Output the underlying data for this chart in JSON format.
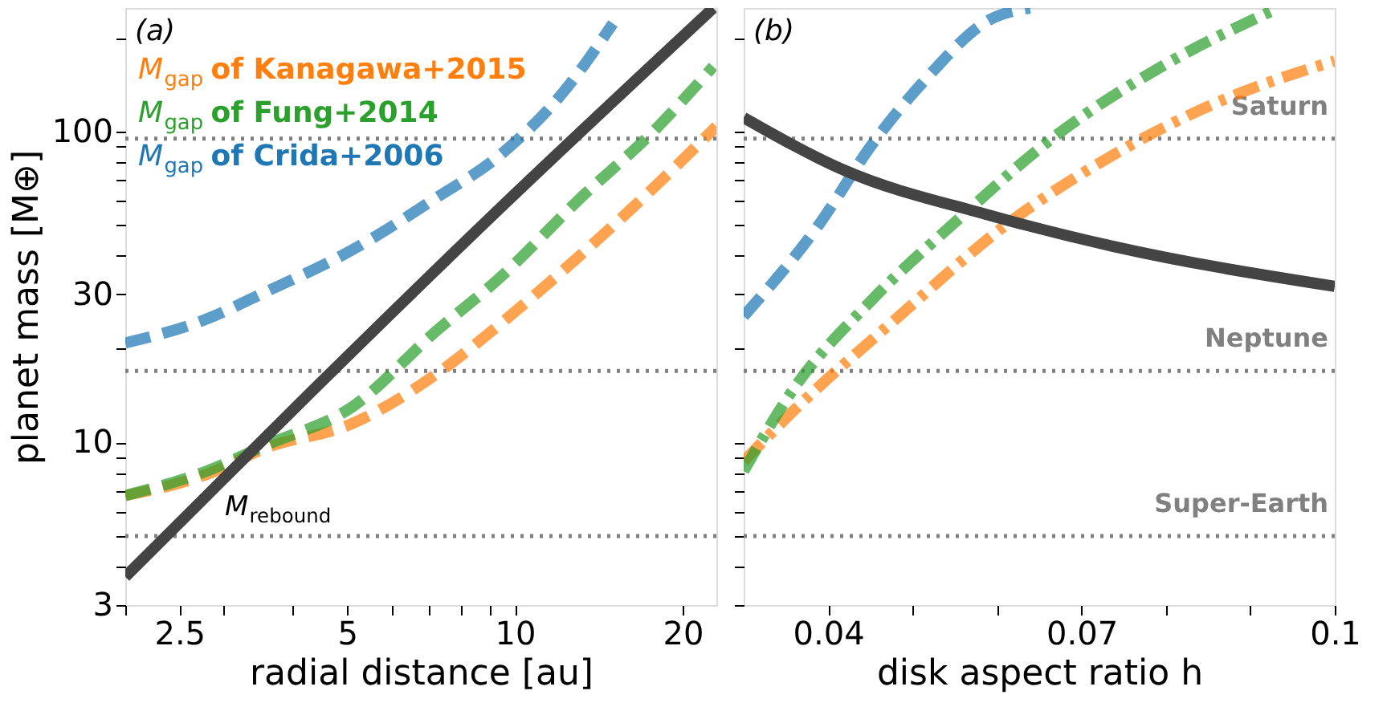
{
  "chart_data": [
    {
      "type": "line",
      "xlabel": "radial distance [au]",
      "ylabel": "planet mass [M⊕]",
      "log": "xy",
      "xlim": [
        2,
        23
      ],
      "ylim": [
        3,
        250
      ],
      "xticks": [
        {
          "value": 2,
          "label": null
        },
        2.5,
        {
          "value": 3,
          "label": null
        },
        {
          "value": 4,
          "label": null
        },
        5,
        {
          "value": 6,
          "label": null
        },
        {
          "value": 7,
          "label": null
        },
        {
          "value": 8,
          "label": null
        },
        {
          "value": 9,
          "label": null
        },
        10,
        20
      ],
      "yticks": [
        3,
        {
          "value": 4,
          "label": null
        },
        {
          "value": 5,
          "label": null
        },
        {
          "value": 6,
          "label": null
        },
        {
          "value": 7,
          "label": null
        },
        {
          "value": 8,
          "label": null
        },
        {
          "value": 9,
          "label": null
        },
        10,
        {
          "value": 20,
          "label": null
        },
        30,
        {
          "value": 40,
          "label": null
        },
        {
          "value": 50,
          "label": null
        },
        {
          "value": 60,
          "label": null
        },
        {
          "value": 70,
          "label": null
        },
        {
          "value": 80,
          "label": null
        },
        {
          "value": 90,
          "label": null
        },
        100,
        {
          "value": 200,
          "label": null
        }
      ],
      "grid": false,
      "legend": "top left",
      "tick_labels": true,
      "series": [
        {
          "name": "M$_{gap}$ of  Kanagawa+2015",
          "color": "#ff7f0e",
          "line_style": "dashed",
          "x": [
            2,
            2.8,
            3.57,
            5.1,
            7.2,
            9.4,
            13.1,
            17.9,
            23
          ],
          "values": [
            6.75,
            7.9,
            9.6,
            11.5,
            16.5,
            24,
            40,
            67,
            104
          ]
        },
        {
          "name": "M$_{gap}$ of Fung+2014",
          "color": "#2ca02c",
          "line_style": "dashed",
          "x": [
            2,
            2.8,
            3.57,
            5.1,
            7.2,
            9.4,
            13.1,
            17.9,
            22.7
          ],
          "values": [
            6.75,
            8.1,
            9.8,
            13,
            22.7,
            33.9,
            61,
            102,
            162
          ]
        },
        {
          "name": "M$_{gap}$ of Crida+2006",
          "color": "#1f77b4",
          "line_style": "dashed",
          "x": [
            2,
            2.74,
            3.57,
            5.1,
            7.2,
            9.4,
            12.3,
            15
          ],
          "values": [
            20.9,
            24.6,
            30.5,
            41.6,
            61,
            84,
            136,
            223
          ]
        },
        {
          "color": "#444444",
          "line_style": "solid",
          "x": [
            2,
            10,
            22.7
          ],
          "values": [
            3.7,
            63,
            250
          ]
        }
      ],
      "ref_lines": [
        {
          "axis": "y",
          "value": 95,
          "color": "#808080",
          "line_style": "dotted"
        },
        {
          "axis": "y",
          "value": 17,
          "color": "#808080",
          "line_style": "dotted"
        },
        {
          "axis": "y",
          "value": 5,
          "color": "#808080",
          "line_style": "dotted"
        }
      ],
      "annotations": [
        "(a)",
        "M$_{rebound}$"
      ]
    },
    {
      "type": "line",
      "xlabel": "disk aspect ratio h",
      "log": "y",
      "xlim": [
        0.03,
        0.1
      ],
      "ylim": [
        3,
        250
      ],
      "xticks": [
        0.04,
        {
          "value": 0.05,
          "label": null
        },
        {
          "value": 0.06,
          "label": null
        },
        0.07,
        {
          "value": 0.08,
          "label": null
        },
        {
          "value": 0.09,
          "label": null
        },
        0.1
      ],
      "yticks": [
        {
          "value": 3,
          "label": null
        },
        {
          "value": 4,
          "label": null
        },
        {
          "value": 5,
          "label": null
        },
        {
          "value": 6,
          "label": null
        },
        {
          "value": 7,
          "label": null
        },
        {
          "value": 8,
          "label": null
        },
        {
          "value": 9,
          "label": null
        },
        {
          "value": 10,
          "label": null
        },
        {
          "value": 20,
          "label": null
        },
        {
          "value": 30,
          "label": null
        },
        {
          "value": 40,
          "label": null
        },
        {
          "value": 50,
          "label": null
        },
        {
          "value": 60,
          "label": null
        },
        {
          "value": 70,
          "label": null
        },
        {
          "value": 80,
          "label": null
        },
        {
          "value": 90,
          "label": null
        },
        {
          "value": 100,
          "label": null
        },
        {
          "value": 200,
          "label": null
        }
      ],
      "grid": false,
      "tick_labels": "x",
      "series": [
        {
          "color": "#ff7f0e",
          "line_style": "dashdot",
          "x": [
            0.03,
            0.0357,
            0.0484,
            0.061,
            0.0737,
            0.0863,
            0.1
          ],
          "values": [
            8.7,
            12.5,
            25.5,
            50,
            84,
            125,
            169
          ]
        },
        {
          "color": "#2ca02c",
          "line_style": "dashdot",
          "x": [
            0.03,
            0.0357,
            0.0452,
            0.0547,
            0.0673,
            0.08,
            0.0933
          ],
          "values": [
            8.1,
            14.6,
            28.8,
            50.2,
            98.7,
            165,
            250
          ]
        },
        {
          "color": "#1f77b4",
          "line_style": "dashed",
          "x": [
            0.03,
            0.0389,
            0.0452,
            0.0515,
            0.0591,
            0.0639
          ],
          "values": [
            25.5,
            50.2,
            91,
            147,
            229,
            250
          ]
        },
        {
          "color": "#444444",
          "line_style": "solid",
          "x": [
            0.03,
            0.042,
            0.0585,
            0.0737,
            0.1
          ],
          "values": [
            111,
            75,
            54.4,
            42.8,
            31.8
          ]
        }
      ],
      "ref_lines": [
        {
          "axis": "y",
          "value": 95,
          "label": "Saturn",
          "color": "#808080",
          "line_style": "dotted"
        },
        {
          "axis": "y",
          "value": 17,
          "label": "Neptune",
          "color": "#808080",
          "line_style": "dotted"
        },
        {
          "axis": "y",
          "value": 5,
          "label": "Super-Earth",
          "color": "#808080",
          "line_style": "dotted"
        }
      ],
      "annotations": [
        "(b)"
      ]
    }
  ]
}
